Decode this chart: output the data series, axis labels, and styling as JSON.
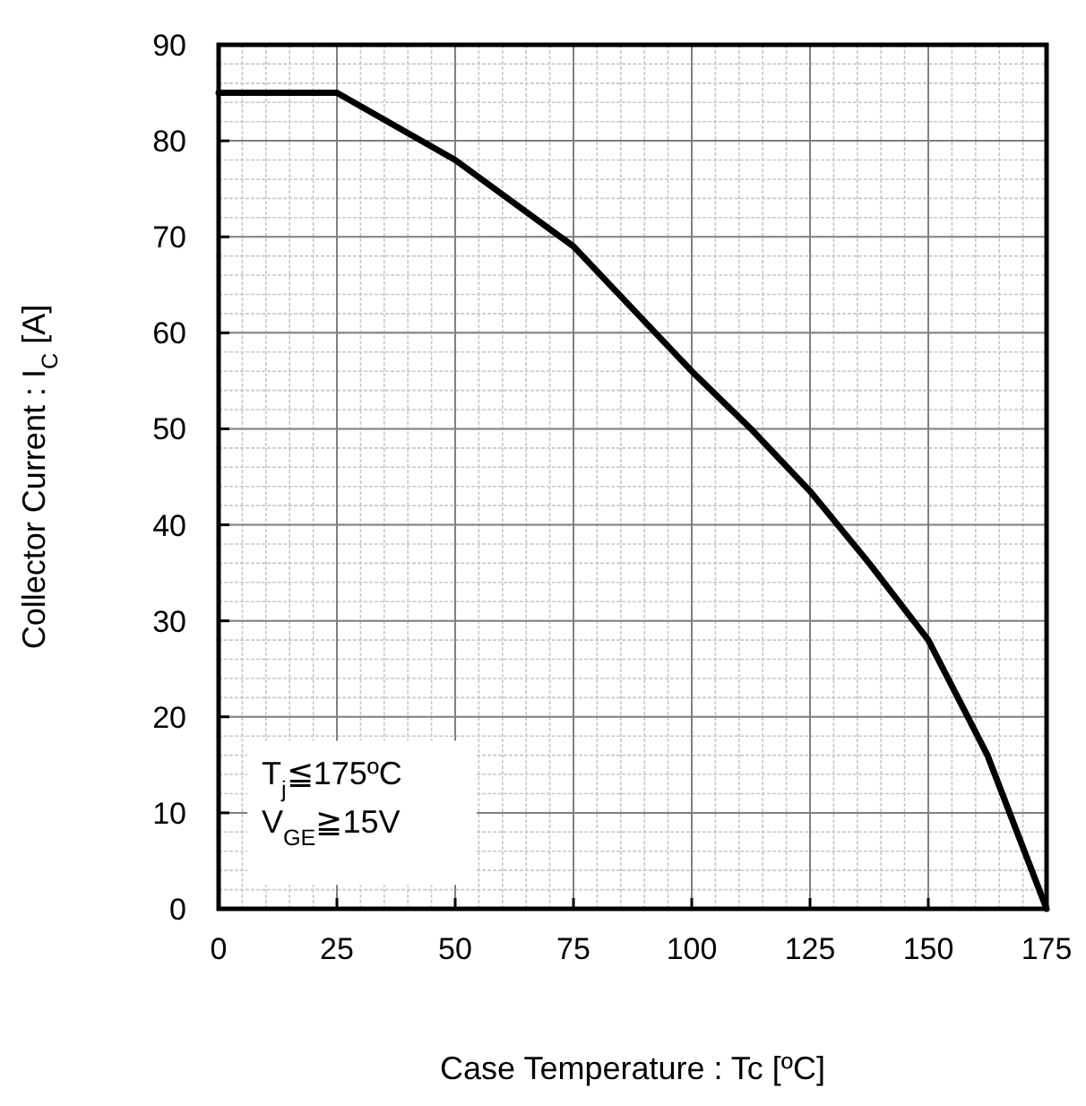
{
  "chart_data": {
    "type": "line",
    "xlabel": "Case Temperature : Tc [ºC]",
    "ylabel": "Collector Current : I$_{C}$ [A]",
    "x": [
      0,
      25,
      50,
      75,
      100,
      112.5,
      125,
      137.5,
      150,
      162.5,
      175
    ],
    "series": [
      {
        "color": "#000000",
        "values": [
          85,
          85,
          78,
          69,
          56,
          50,
          43.5,
          36,
          28,
          16,
          0
        ]
      }
    ],
    "xlim": [
      0,
      175
    ],
    "xticks": [
      0,
      25,
      50,
      75,
      100,
      125,
      150,
      175
    ],
    "ylim": [
      0,
      90
    ],
    "yticks": [
      0,
      10,
      20,
      30,
      40,
      50,
      60,
      70,
      80,
      90
    ],
    "grid": true,
    "marker": "none",
    "line_style": "solid",
    "annotations": [
      "T$_{j}$≦175ºC",
      "V$_{GE}$≧15V"
    ]
  }
}
